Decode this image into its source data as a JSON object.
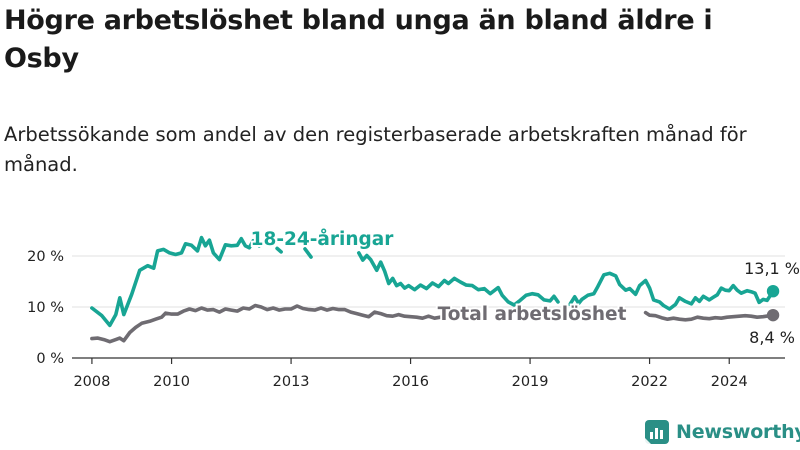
{
  "title": "Högre arbetslöshet bland unga än bland äldre i Osby",
  "subtitle": "Arbetssökande som andel av den registerbaserade arbetskraften månad för månad.",
  "brand": {
    "name": "Newsworthy",
    "icon": "newsworthy-logo-icon"
  },
  "colors": {
    "young": "#18a594",
    "total": "#6f6c72",
    "grid": "#e0e0e0",
    "axis": "#333333",
    "brand": "#2a8f86"
  },
  "chart_data": {
    "type": "line",
    "title": "Högre arbetslöshet bland unga än bland äldre i Osby",
    "subtitle": "Arbetssökande som andel av den registerbaserade arbetskraften månad för månad.",
    "xlabel": "",
    "ylabel": "",
    "xlim": [
      2007.5,
      2025.4
    ],
    "ylim": [
      0,
      20
    ],
    "grid": true,
    "x_ticks": [
      2008,
      2010,
      2013,
      2016,
      2019,
      2022,
      2024
    ],
    "x_tick_labels": [
      "2008",
      "2010",
      "2013",
      "2016",
      "2019",
      "2022",
      "2024"
    ],
    "y_ticks": [
      0,
      10,
      20
    ],
    "y_tick_labels": [
      "0 %",
      "10 %",
      "20 %"
    ],
    "series": [
      {
        "name": "18-24-åringar",
        "label": "18-24-åringar",
        "color": "#18a594",
        "end_label": "13,1 %",
        "points": [
          [
            2008.0,
            9.8
          ],
          [
            2008.25,
            8.3
          ],
          [
            2008.45,
            6.4
          ],
          [
            2008.6,
            8.5
          ],
          [
            2008.7,
            11.8
          ],
          [
            2008.8,
            8.5
          ],
          [
            2009.0,
            12.5
          ],
          [
            2009.2,
            17.2
          ],
          [
            2009.4,
            18.1
          ],
          [
            2009.55,
            17.6
          ],
          [
            2009.65,
            21.0
          ],
          [
            2009.8,
            21.3
          ],
          [
            2009.95,
            20.6
          ],
          [
            2010.1,
            20.3
          ],
          [
            2010.25,
            20.6
          ],
          [
            2010.35,
            22.4
          ],
          [
            2010.5,
            22.1
          ],
          [
            2010.65,
            21.0
          ],
          [
            2010.75,
            23.6
          ],
          [
            2010.85,
            22.0
          ],
          [
            2010.95,
            23.1
          ],
          [
            2011.05,
            20.6
          ],
          [
            2011.2,
            19.3
          ],
          [
            2011.35,
            22.2
          ],
          [
            2011.5,
            22.0
          ],
          [
            2011.65,
            22.1
          ],
          [
            2011.75,
            23.4
          ],
          [
            2011.85,
            22.0
          ],
          [
            2011.95,
            21.6
          ],
          [
            2012.05,
            23.0
          ],
          [
            2012.15,
            22.6
          ],
          [
            2012.2,
            22.0
          ],
          null,
          [
            2012.65,
            21.5
          ],
          [
            2012.75,
            20.8
          ],
          null,
          [
            2013.35,
            21.4
          ],
          [
            2013.5,
            19.8
          ],
          null,
          [
            2014.7,
            20.6
          ],
          [
            2014.8,
            19.2
          ],
          [
            2014.9,
            20.1
          ],
          [
            2015.0,
            19.3
          ],
          [
            2015.15,
            17.2
          ],
          [
            2015.25,
            18.8
          ],
          [
            2015.35,
            17.0
          ],
          [
            2015.45,
            14.6
          ],
          [
            2015.55,
            15.6
          ],
          [
            2015.65,
            14.2
          ],
          [
            2015.75,
            14.6
          ],
          [
            2015.85,
            13.7
          ],
          [
            2015.95,
            14.2
          ],
          [
            2016.1,
            13.4
          ],
          [
            2016.25,
            14.3
          ],
          [
            2016.4,
            13.6
          ],
          [
            2016.55,
            14.7
          ],
          [
            2016.7,
            14.0
          ],
          [
            2016.85,
            15.2
          ],
          [
            2016.95,
            14.6
          ],
          [
            2017.1,
            15.6
          ],
          [
            2017.25,
            14.9
          ],
          [
            2017.4,
            14.3
          ],
          [
            2017.55,
            14.2
          ],
          [
            2017.7,
            13.4
          ],
          [
            2017.85,
            13.6
          ],
          [
            2018.0,
            12.6
          ],
          [
            2018.2,
            13.8
          ],
          [
            2018.3,
            12.3
          ],
          [
            2018.45,
            11.0
          ],
          [
            2018.6,
            10.4
          ],
          [
            2018.75,
            11.3
          ],
          [
            2018.9,
            12.3
          ],
          [
            2019.05,
            12.6
          ],
          [
            2019.2,
            12.4
          ],
          [
            2019.35,
            11.4
          ],
          [
            2019.5,
            11.2
          ],
          [
            2019.6,
            12.1
          ],
          [
            2019.7,
            11.0
          ],
          null,
          [
            2020.0,
            10.5
          ],
          [
            2020.12,
            12.0
          ],
          [
            2020.22,
            10.7
          ],
          [
            2020.3,
            11.5
          ],
          [
            2020.45,
            12.3
          ],
          [
            2020.6,
            12.6
          ],
          [
            2020.7,
            14.0
          ],
          [
            2020.85,
            16.3
          ],
          [
            2021.0,
            16.6
          ],
          [
            2021.15,
            16.1
          ],
          [
            2021.25,
            14.4
          ],
          [
            2021.4,
            13.3
          ],
          [
            2021.5,
            13.6
          ],
          [
            2021.65,
            12.5
          ],
          [
            2021.75,
            14.2
          ],
          [
            2021.9,
            15.2
          ],
          [
            2022.0,
            13.7
          ],
          [
            2022.1,
            11.4
          ],
          [
            2022.25,
            11.0
          ],
          [
            2022.35,
            10.3
          ],
          [
            2022.5,
            9.6
          ],
          [
            2022.65,
            10.5
          ],
          [
            2022.75,
            11.8
          ],
          [
            2022.9,
            11.1
          ],
          [
            2023.05,
            10.6
          ],
          [
            2023.15,
            11.8
          ],
          [
            2023.25,
            11.1
          ],
          [
            2023.35,
            12.1
          ],
          [
            2023.5,
            11.4
          ],
          [
            2023.6,
            11.9
          ],
          [
            2023.7,
            12.4
          ],
          [
            2023.8,
            13.7
          ],
          [
            2023.9,
            13.3
          ],
          [
            2024.0,
            13.2
          ],
          [
            2024.1,
            14.2
          ],
          [
            2024.2,
            13.3
          ],
          [
            2024.3,
            12.7
          ],
          [
            2024.45,
            13.2
          ],
          [
            2024.55,
            13.0
          ],
          [
            2024.65,
            12.7
          ],
          [
            2024.75,
            10.9
          ],
          [
            2024.85,
            11.5
          ],
          [
            2024.95,
            11.3
          ],
          [
            2025.1,
            13.1
          ]
        ]
      },
      {
        "name": "Total arbetslöshet",
        "label": "Total arbetslöshet",
        "color": "#6f6c72",
        "end_label": "8,4 %",
        "points": [
          [
            2008.0,
            3.8
          ],
          [
            2008.15,
            3.9
          ],
          [
            2008.3,
            3.6
          ],
          [
            2008.45,
            3.2
          ],
          [
            2008.6,
            3.6
          ],
          [
            2008.7,
            3.9
          ],
          [
            2008.8,
            3.4
          ],
          [
            2008.95,
            5.0
          ],
          [
            2009.1,
            6.0
          ],
          [
            2009.25,
            6.8
          ],
          [
            2009.45,
            7.2
          ],
          [
            2009.6,
            7.6
          ],
          [
            2009.75,
            8.0
          ],
          [
            2009.85,
            8.8
          ],
          [
            2010.0,
            8.6
          ],
          [
            2010.15,
            8.6
          ],
          [
            2010.3,
            9.2
          ],
          [
            2010.45,
            9.6
          ],
          [
            2010.6,
            9.3
          ],
          [
            2010.75,
            9.8
          ],
          [
            2010.9,
            9.4
          ],
          [
            2011.05,
            9.5
          ],
          [
            2011.2,
            9.0
          ],
          [
            2011.35,
            9.6
          ],
          [
            2011.5,
            9.4
          ],
          [
            2011.65,
            9.2
          ],
          [
            2011.8,
            9.8
          ],
          [
            2011.95,
            9.6
          ],
          [
            2012.1,
            10.3
          ],
          [
            2012.25,
            10.0
          ],
          [
            2012.4,
            9.5
          ],
          [
            2012.55,
            9.8
          ],
          [
            2012.7,
            9.4
          ],
          [
            2012.85,
            9.6
          ],
          [
            2013.0,
            9.6
          ],
          [
            2013.15,
            10.2
          ],
          [
            2013.3,
            9.7
          ],
          [
            2013.45,
            9.5
          ],
          [
            2013.6,
            9.4
          ],
          [
            2013.75,
            9.8
          ],
          [
            2013.9,
            9.4
          ],
          [
            2014.05,
            9.7
          ],
          [
            2014.2,
            9.5
          ],
          [
            2014.35,
            9.5
          ],
          [
            2014.5,
            9.0
          ],
          [
            2014.65,
            8.7
          ],
          [
            2014.8,
            8.4
          ],
          [
            2014.95,
            8.1
          ],
          [
            2015.1,
            9.0
          ],
          [
            2015.25,
            8.7
          ],
          [
            2015.4,
            8.3
          ],
          [
            2015.55,
            8.2
          ],
          [
            2015.7,
            8.5
          ],
          [
            2015.85,
            8.2
          ],
          [
            2016.0,
            8.1
          ],
          [
            2016.15,
            8.0
          ],
          [
            2016.3,
            7.8
          ],
          [
            2016.45,
            8.2
          ],
          [
            2016.6,
            7.8
          ],
          [
            2016.75,
            8.0
          ],
          null,
          [
            2021.9,
            8.9
          ],
          [
            2022.0,
            8.4
          ],
          [
            2022.15,
            8.3
          ],
          [
            2022.3,
            7.9
          ],
          [
            2022.45,
            7.6
          ],
          [
            2022.6,
            7.8
          ],
          [
            2022.75,
            7.6
          ],
          [
            2022.9,
            7.5
          ],
          [
            2023.05,
            7.6
          ],
          [
            2023.2,
            8.0
          ],
          [
            2023.35,
            7.8
          ],
          [
            2023.5,
            7.7
          ],
          [
            2023.65,
            7.9
          ],
          [
            2023.8,
            7.8
          ],
          [
            2023.95,
            8.0
          ],
          [
            2024.1,
            8.1
          ],
          [
            2024.25,
            8.2
          ],
          [
            2024.4,
            8.3
          ],
          [
            2024.55,
            8.2
          ],
          [
            2024.7,
            8.0
          ],
          [
            2024.85,
            8.1
          ],
          [
            2025.1,
            8.4
          ]
        ]
      }
    ]
  }
}
